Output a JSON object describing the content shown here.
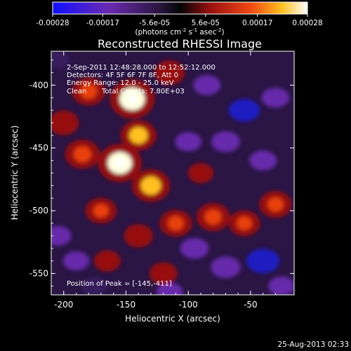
{
  "colorbar": {
    "ticks": [
      {
        "value": -0.00028,
        "label": "-0.00028"
      },
      {
        "value": -0.00017,
        "label": "-0.00017"
      },
      {
        "value": -5.6e-05,
        "label": "-5.6e-05"
      },
      {
        "value": 5.6e-05,
        "label": "5.6e-05"
      },
      {
        "value": 0.00017,
        "label": "0.00017"
      },
      {
        "value": 0.00028,
        "label": "0.00028"
      }
    ],
    "range": [
      -0.00028,
      0.00028
    ],
    "unit_main": "(photons cm",
    "unit_sup1": "-2",
    "unit_mid": " s",
    "unit_sup2": "-1",
    "unit_end": " asec",
    "unit_sup3": "-2",
    "unit_close": ")"
  },
  "colors": {
    "negative_low": "#1d1cc9",
    "negative_mid": "#6a2ab0",
    "negative_high": "#3a1a60",
    "zero": "#0a0a0a",
    "positive_low": "#9a1010",
    "positive_mid": "#e84010",
    "positive_high": "#ffc020",
    "peak": "#ffffe0"
  },
  "annotations": {
    "time_range": "2-Sep-2011 12:48:28.000 to 12:52:12.000",
    "detectors": "Detectors: 4F 5F 6F 7F 8F, Att 0",
    "energy": "Energy Range: 12.0 - 25.0 keV",
    "algorithm": "Clean",
    "counts": "Total Counts: 7.80E+03",
    "peak": "Position of Peak = [-145,-411]"
  },
  "footer": {
    "timestamp": "25-Aug-2013 02:33"
  },
  "chart_data": {
    "type": "heatmap",
    "title": "Reconstructed RHESSI Image",
    "xlabel": "Heliocentric X (arcsec)",
    "ylabel": "Heliocentric Y (arcsec)",
    "xlim": [
      -210,
      -15
    ],
    "ylim": [
      -567,
      -373
    ],
    "xticks": [
      {
        "value": -200,
        "label": "-200"
      },
      {
        "value": -150,
        "label": "-150"
      },
      {
        "value": -100,
        "label": "-100"
      },
      {
        "value": -50,
        "label": "-50"
      }
    ],
    "yticks": [
      {
        "value": -550,
        "label": "-550"
      },
      {
        "value": -500,
        "label": "-500"
      },
      {
        "value": -450,
        "label": "-450"
      },
      {
        "value": -400,
        "label": "-400"
      }
    ],
    "peak_position": [
      -145,
      -411
    ],
    "sources": [
      {
        "x": -145,
        "y": -411,
        "intensity": 1.0
      },
      {
        "x": -155,
        "y": -462,
        "intensity": 0.95
      },
      {
        "x": -130,
        "y": -480,
        "intensity": 0.7
      },
      {
        "x": -185,
        "y": -455,
        "intensity": 0.55
      },
      {
        "x": -180,
        "y": -405,
        "intensity": 0.5
      },
      {
        "x": -140,
        "y": -440,
        "intensity": 0.6
      },
      {
        "x": -110,
        "y": -510,
        "intensity": 0.45
      },
      {
        "x": -80,
        "y": -505,
        "intensity": 0.5
      },
      {
        "x": -55,
        "y": -510,
        "intensity": 0.4
      },
      {
        "x": -30,
        "y": -495,
        "intensity": 0.45
      },
      {
        "x": -115,
        "y": -390,
        "intensity": 0.35
      },
      {
        "x": -170,
        "y": -500,
        "intensity": 0.4
      },
      {
        "x": -200,
        "y": -430,
        "intensity": 0.35
      },
      {
        "x": -120,
        "y": -550,
        "intensity": 0.25
      },
      {
        "x": -165,
        "y": -540,
        "intensity": 0.2
      },
      {
        "x": -140,
        "y": -520,
        "intensity": 0.3
      },
      {
        "x": -90,
        "y": -470,
        "intensity": 0.15
      }
    ],
    "negative_sources": [
      {
        "x": -40,
        "y": -540,
        "intensity": -0.6
      },
      {
        "x": -70,
        "y": -545,
        "intensity": -0.45
      },
      {
        "x": -95,
        "y": -530,
        "intensity": -0.4
      },
      {
        "x": -55,
        "y": -420,
        "intensity": -0.5
      },
      {
        "x": -30,
        "y": -410,
        "intensity": -0.35
      },
      {
        "x": -85,
        "y": -400,
        "intensity": -0.35
      },
      {
        "x": -70,
        "y": -445,
        "intensity": -0.4
      },
      {
        "x": -40,
        "y": -460,
        "intensity": -0.35
      },
      {
        "x": -100,
        "y": -445,
        "intensity": -0.3
      },
      {
        "x": -205,
        "y": -520,
        "intensity": -0.35
      },
      {
        "x": -190,
        "y": -540,
        "intensity": -0.3
      },
      {
        "x": -25,
        "y": -560,
        "intensity": -0.3
      },
      {
        "x": -115,
        "y": -565,
        "intensity": -0.3
      },
      {
        "x": -175,
        "y": -560,
        "intensity": -0.25
      },
      {
        "x": -205,
        "y": -380,
        "intensity": -0.2
      }
    ]
  }
}
